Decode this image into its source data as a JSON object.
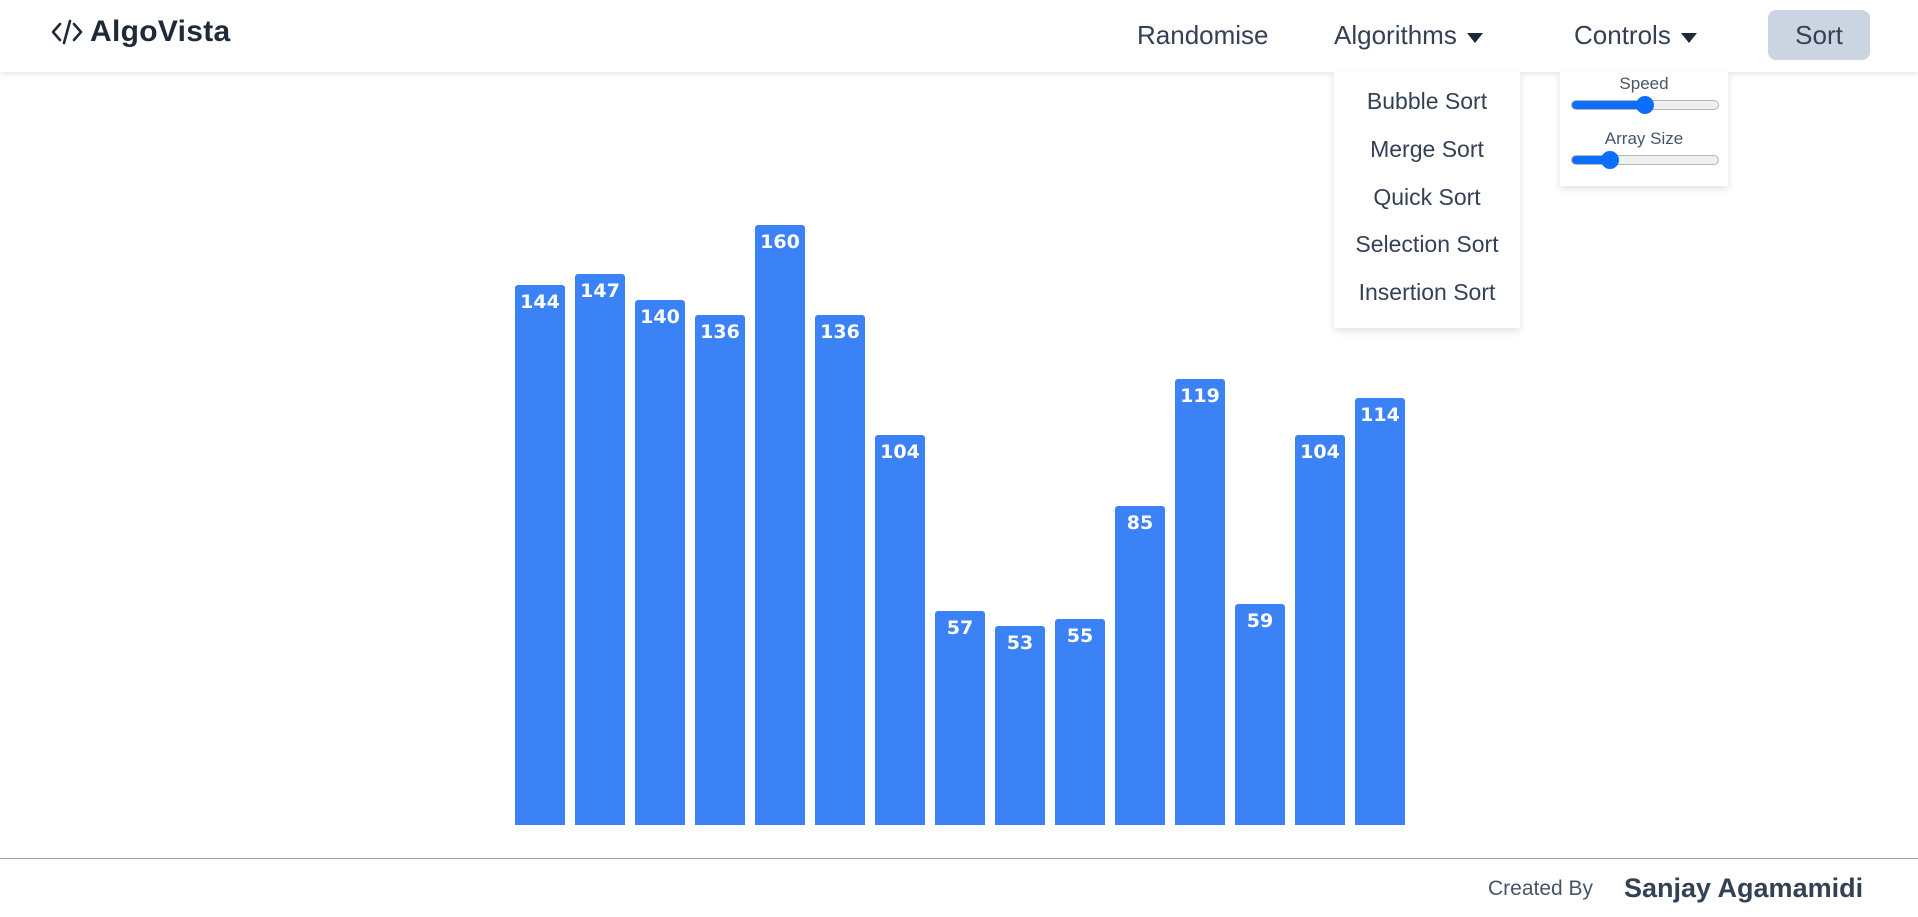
{
  "header": {
    "logo_text": "AlgoVista",
    "nav": {
      "randomise": "Randomise",
      "algorithms": "Algorithms",
      "controls": "Controls",
      "sort": "Sort"
    }
  },
  "algorithms_menu": {
    "items": [
      "Bubble Sort",
      "Merge Sort",
      "Quick Sort",
      "Selection Sort",
      "Insertion Sort"
    ]
  },
  "controls_menu": {
    "speed_label": "Speed",
    "speed_fraction": 0.5,
    "array_size_label": "Array Size",
    "array_size_fraction": 0.26
  },
  "chart_data": {
    "type": "bar",
    "values": [
      144,
      147,
      140,
      136,
      160,
      136,
      104,
      57,
      53,
      55,
      85,
      119,
      59,
      104,
      114
    ],
    "ylim": [
      0,
      160
    ],
    "bar_color": "#3b82f6"
  },
  "footer": {
    "created_by": "Created By",
    "author": "Sanjay Agamamidi"
  },
  "colors": {
    "accent": "#3b82f6",
    "slider": "#0b6efd",
    "sort_button_bg": "#cbd5e1"
  }
}
